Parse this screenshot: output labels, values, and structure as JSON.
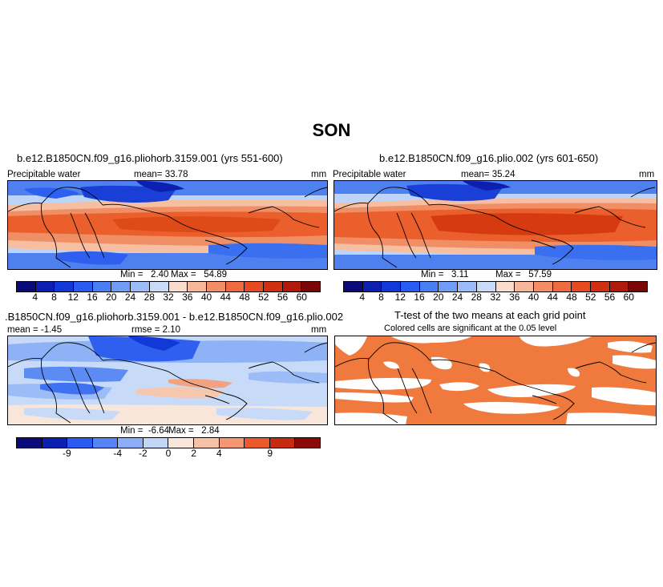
{
  "figure": {
    "season": "SON"
  },
  "panels": {
    "p1": {
      "title": "b.e12.B1850CN.f09_g16.pliohorb.3159.001 (yrs 551-600)",
      "var": "Precipitable water",
      "mean_label": "mean=",
      "mean": "33.78",
      "units": "mm",
      "min_label": "Min =",
      "min": "2.40",
      "max_label": "Max =",
      "max": "54.89"
    },
    "p2": {
      "title": "b.e12.B1850CN.f09_g16.plio.002 (yrs 601-650)",
      "var": "Precipitable water",
      "mean_label": "mean=",
      "mean": "35.24",
      "units": "mm",
      "min_label": "Min =",
      "min": "3.11",
      "max_label": "Max =",
      "max": "57.59"
    },
    "p3": {
      "title": ".B1850CN.f09_g16.pliohorb.3159.001 - b.e12.B1850CN.f09_g16.plio.002",
      "mean_label": "mean =",
      "mean": "-1.45",
      "rmse_label": "rmse =",
      "rmse": "2.10",
      "units": "mm",
      "min_label": "Min =",
      "min": "-6.64",
      "max_label": "Max =",
      "max": "2.84"
    },
    "p4": {
      "title": "T-test of the two means at each grid point",
      "subtitle": "Colored cells are significant at the 0.05 level",
      "color": "#f07a3e"
    }
  },
  "chart_data": [
    {
      "type": "heatmap",
      "title": "b.e12.B1850CN.f09_g16.pliohorb.3159.001 (yrs 551-600)",
      "variable": "Precipitable water",
      "units": "mm",
      "mean": 33.78,
      "min": 2.4,
      "max": 54.89,
      "colorbar_ticks": [
        "4",
        "8",
        "12",
        "16",
        "20",
        "24",
        "28",
        "32",
        "36",
        "40",
        "44",
        "48",
        "52",
        "56",
        "60"
      ],
      "colorbar_colors": [
        "#0a0a7a",
        "#0d1fb0",
        "#1238d8",
        "#2a5bf0",
        "#4a7ef4",
        "#6f9cf6",
        "#9bbcf8",
        "#c8daf8",
        "#f9dccb",
        "#f7b59a",
        "#f48d66",
        "#ef6a3f",
        "#e74a20",
        "#d03010",
        "#b01a0a",
        "#7a0606"
      ]
    },
    {
      "type": "heatmap",
      "title": "b.e12.B1850CN.f09_g16.plio.002 (yrs 601-650)",
      "variable": "Precipitable water",
      "units": "mm",
      "mean": 35.24,
      "min": 3.11,
      "max": 57.59
    },
    {
      "type": "heatmap",
      "title": ".B1850CN.f09_g16.pliohorb.3159.001 - b.e12.B1850CN.f09_g16.plio.002",
      "units": "mm",
      "mean": -1.45,
      "rmse": 2.1,
      "min": -6.64,
      "max": 2.84,
      "colorbar_ticks": [
        "-9",
        "-4",
        "-2",
        "0",
        "2",
        "4",
        "9"
      ],
      "colorbar_colors": [
        "#0a0a7a",
        "#0d1fb0",
        "#2a5bf0",
        "#5585f4",
        "#8aaef7",
        "#c2d6f8",
        "#f9e6da",
        "#f7c1a6",
        "#f49670",
        "#ea5a2a",
        "#c62a10",
        "#8a0a06"
      ]
    },
    {
      "type": "heatmap",
      "title": "T-test of the two means at each grid point",
      "subtitle": "Colored cells are significant at the 0.05 level"
    }
  ]
}
